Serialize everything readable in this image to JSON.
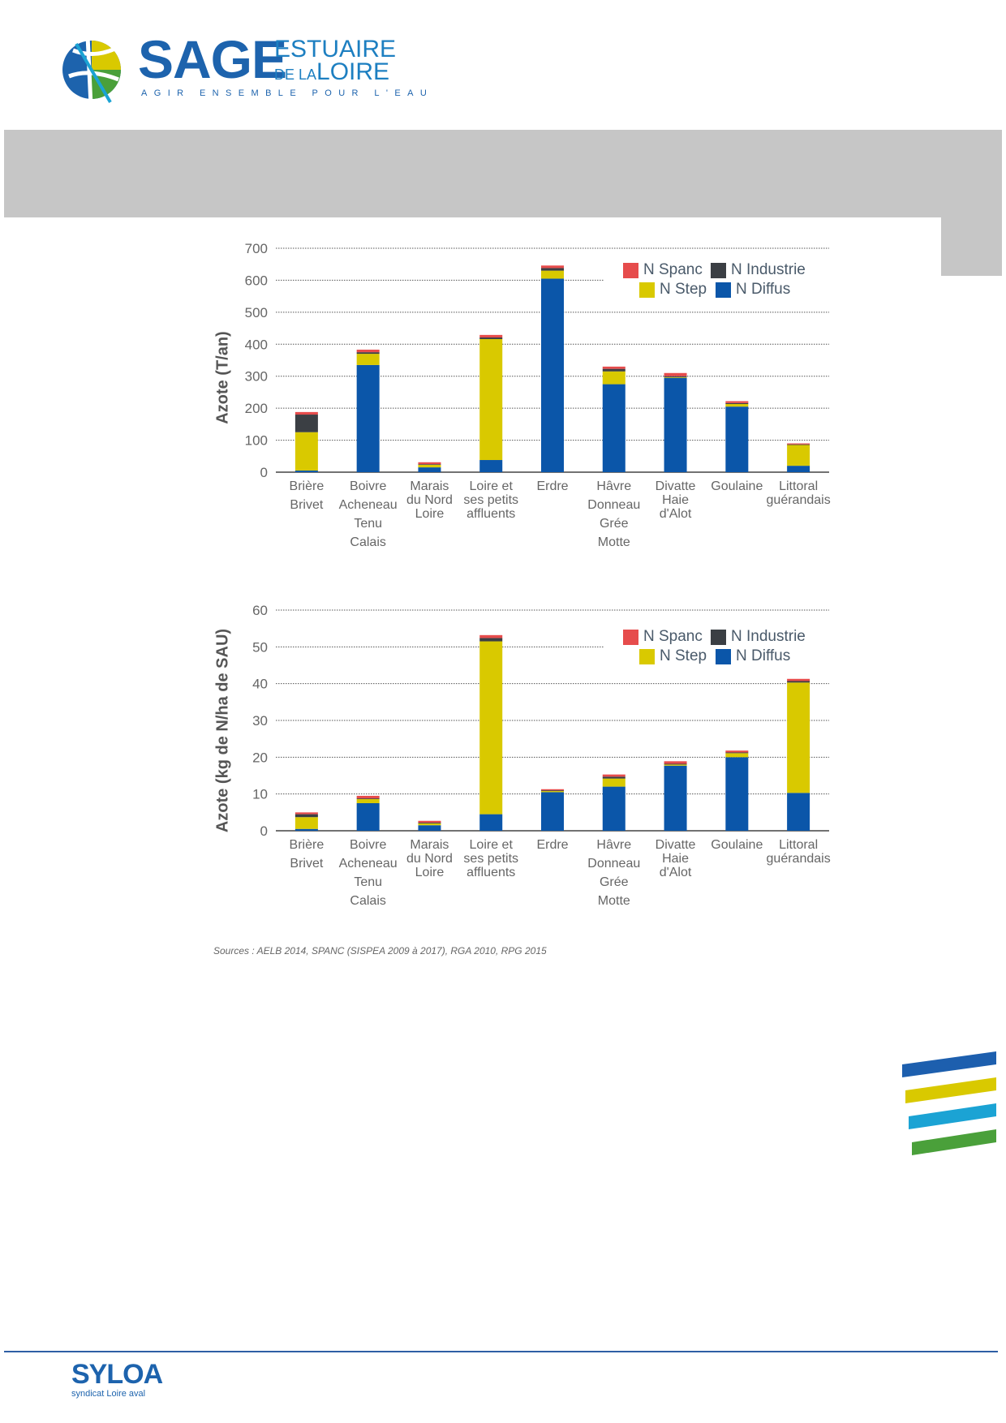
{
  "header": {
    "logo_main": "SAGE",
    "logo_line1": "ESTUAIRE",
    "logo_line2_small": "DE LA",
    "logo_line2_big": "LOIRE",
    "tagline": "AGIR ENSEMBLE POUR L'EAU"
  },
  "colors": {
    "spanc": "#e64c4c",
    "industrie": "#3b3f44",
    "step": "#d9c900",
    "diffus": "#0b56a9",
    "grid": "#555555"
  },
  "chart_data": [
    {
      "type": "bar",
      "stacked": true,
      "ylabel": "Azote (T/an)",
      "ylim": [
        0,
        700
      ],
      "yticks": [
        "0",
        "100",
        "200",
        "300",
        "400",
        "500",
        "600",
        "700"
      ],
      "grid": true,
      "legend_position": "top-right",
      "categories": [
        [
          "Brière",
          "Brivet"
        ],
        [
          "Boivre",
          "Acheneau",
          "Tenu",
          "Calais"
        ],
        [
          "Marais",
          "du Nord",
          "Loire"
        ],
        [
          "Loire et",
          "ses petits",
          "affluents"
        ],
        [
          "Erdre"
        ],
        [
          "Hâvre",
          "Donneau",
          "Grée",
          "Motte"
        ],
        [
          "Divatte",
          "Haie",
          "d'Alot"
        ],
        [
          "Goulaine"
        ],
        [
          "Littoral",
          "guérandais"
        ]
      ],
      "series": [
        {
          "name": "N Diffus",
          "color_key": "diffus",
          "values": [
            5,
            335,
            15,
            38,
            605,
            275,
            295,
            205,
            20
          ]
        },
        {
          "name": "N Step",
          "color_key": "step",
          "values": [
            120,
            35,
            8,
            378,
            25,
            40,
            2,
            8,
            65
          ]
        },
        {
          "name": "N Industrie",
          "color_key": "industrie",
          "values": [
            55,
            5,
            2,
            5,
            8,
            8,
            3,
            3,
            2
          ]
        },
        {
          "name": "N Spanc",
          "color_key": "spanc",
          "values": [
            8,
            8,
            6,
            8,
            8,
            7,
            10,
            6,
            3
          ]
        }
      ],
      "legend": [
        {
          "name": "N Spanc",
          "color_key": "spanc"
        },
        {
          "name": "N Industrie",
          "color_key": "industrie"
        },
        {
          "name": "N Step",
          "color_key": "step"
        },
        {
          "name": "N Diffus",
          "color_key": "diffus"
        }
      ]
    },
    {
      "type": "bar",
      "stacked": true,
      "ylabel": "Azote (kg de N/ha de SAU)",
      "ylim": [
        0,
        60
      ],
      "yticks": [
        "0",
        "10",
        "20",
        "30",
        "40",
        "50",
        "60"
      ],
      "grid": true,
      "legend_position": "top-right",
      "categories": [
        [
          "Brière",
          "Brivet"
        ],
        [
          "Boivre",
          "Acheneau",
          "Tenu",
          "Calais"
        ],
        [
          "Marais",
          "du Nord",
          "Loire"
        ],
        [
          "Loire et",
          "ses petits",
          "affluents"
        ],
        [
          "Erdre"
        ],
        [
          "Hâvre",
          "Donneau",
          "Grée",
          "Motte"
        ],
        [
          "Divatte",
          "Haie",
          "d'Alot"
        ],
        [
          "Goulaine"
        ],
        [
          "Littoral",
          "guérandais"
        ]
      ],
      "series": [
        {
          "name": "N Diffus",
          "color_key": "diffus",
          "values": [
            0.5,
            7.5,
            1.5,
            4.5,
            10.5,
            12,
            17.7,
            20,
            10.3
          ]
        },
        {
          "name": "N Step",
          "color_key": "step",
          "values": [
            3.2,
            1.1,
            0.5,
            47,
            0.3,
            2.2,
            0.3,
            1.1,
            30
          ]
        },
        {
          "name": "N Industrie",
          "color_key": "industrie",
          "values": [
            0.8,
            0.2,
            0.2,
            0.9,
            0.2,
            0.5,
            0.2,
            0.2,
            0.4
          ]
        },
        {
          "name": "N Spanc",
          "color_key": "spanc",
          "values": [
            0.5,
            0.7,
            0.5,
            0.8,
            0.3,
            0.6,
            0.7,
            0.5,
            0.6
          ]
        }
      ],
      "legend": [
        {
          "name": "N Spanc",
          "color_key": "spanc"
        },
        {
          "name": "N Industrie",
          "color_key": "industrie"
        },
        {
          "name": "N Step",
          "color_key": "step"
        },
        {
          "name": "N Diffus",
          "color_key": "diffus"
        }
      ]
    }
  ],
  "source_note": "Sources : AELB 2014, SPANC (SISPEA 2009 à 2017), RGA 2010, RPG 2015",
  "footer": {
    "logo_main": "SYLOA",
    "logo_sub": "syndicat Loire aval"
  }
}
